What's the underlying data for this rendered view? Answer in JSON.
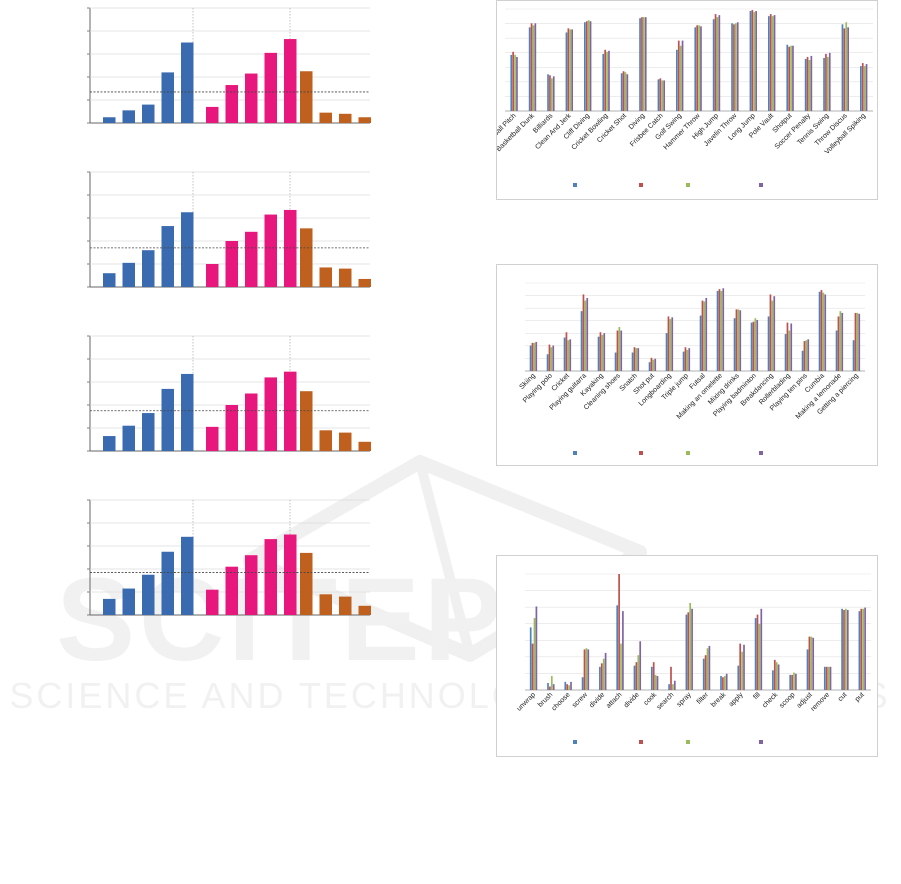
{
  "watermark": {
    "title": "SCITEPRESS",
    "subtitle": "SCIENCE AND TECHNOLOGY PUBLICATIONS"
  },
  "chart_data": [
    {
      "type": "bar",
      "grid": true,
      "ylim": [
        0,
        100
      ],
      "reference_line": 27,
      "groups": [
        {
          "color": "#3a6bb0",
          "values": [
            5,
            11,
            16,
            44,
            70
          ]
        },
        {
          "color": "#e8177d",
          "values": [
            14,
            33,
            43,
            61,
            73
          ]
        },
        {
          "color": "#c0601e",
          "values": [
            45,
            9,
            8,
            5
          ]
        }
      ]
    },
    {
      "type": "bar",
      "grid": true,
      "ylim": [
        0,
        100
      ],
      "reference_line": 34,
      "groups": [
        {
          "color": "#3a6bb0",
          "values": [
            12,
            21,
            32,
            53,
            65
          ]
        },
        {
          "color": "#e8177d",
          "values": [
            20,
            40,
            48,
            63,
            67
          ]
        },
        {
          "color": "#c0601e",
          "values": [
            51,
            17,
            16,
            7
          ]
        }
      ]
    },
    {
      "type": "bar",
      "grid": true,
      "ylim": [
        0,
        100
      ],
      "reference_line": 35,
      "groups": [
        {
          "color": "#3a6bb0",
          "values": [
            13,
            22,
            33,
            54,
            67
          ]
        },
        {
          "color": "#e8177d",
          "values": [
            21,
            40,
            50,
            64,
            69
          ]
        },
        {
          "color": "#c0601e",
          "values": [
            52,
            18,
            16,
            8
          ]
        }
      ]
    },
    {
      "type": "bar",
      "grid": true,
      "ylim": [
        0,
        100
      ],
      "reference_line": 37,
      "groups": [
        {
          "color": "#3a6bb0",
          "values": [
            14,
            23,
            35,
            55,
            68
          ]
        },
        {
          "color": "#e8177d",
          "values": [
            22,
            42,
            52,
            66,
            70
          ]
        },
        {
          "color": "#c0601e",
          "values": [
            54,
            18,
            16,
            8
          ]
        }
      ]
    },
    {
      "type": "bar",
      "grid": true,
      "ylim": [
        0,
        100
      ],
      "series_colors": [
        "#4f81bd",
        "#c0504d",
        "#9bbb59",
        "#8064a2"
      ],
      "categories": [
        "Baseball Pitch",
        "Basketball Dunk",
        "Billiards",
        "Clean And Jerk",
        "Cliff Diving",
        "Cricket Bowling",
        "Cricket Shot",
        "Diving",
        "Frisbee Catch",
        "Golf Swing",
        "Hammer Throw",
        "High Jump",
        "Javelin Throw",
        "Long Jump",
        "Pole Vault",
        "Shotput",
        "Soccer Penalty",
        "Tennis Swing",
        "Throw Discus",
        "Volleyball Spiking"
      ],
      "series": [
        {
          "values": [
            55,
            82,
            36,
            77,
            87,
            56,
            37,
            91,
            31,
            60,
            82,
            90,
            86,
            98,
            93,
            65,
            51,
            52,
            85,
            44
          ]
        },
        {
          "values": [
            58,
            86,
            35,
            81,
            88,
            60,
            39,
            92,
            32,
            69,
            84,
            95,
            85,
            99,
            95,
            63,
            53,
            56,
            81,
            47
          ]
        },
        {
          "values": [
            55,
            84,
            32,
            80,
            89,
            58,
            38,
            92,
            30,
            64,
            84,
            92,
            86,
            97,
            93,
            64,
            50,
            53,
            87,
            44
          ]
        },
        {
          "values": [
            53,
            86,
            34,
            80,
            88,
            59,
            36,
            92,
            30,
            69,
            83,
            94,
            87,
            98,
            94,
            64,
            54,
            57,
            82,
            46
          ]
        }
      ]
    },
    {
      "type": "bar",
      "grid": true,
      "ylim": [
        0,
        100
      ],
      "series_colors": [
        "#4f81bd",
        "#c0504d",
        "#9bbb59",
        "#8064a2"
      ],
      "categories": [
        "Skiing",
        "Playing polo",
        "Cricket",
        "Playing guitarra",
        "Kayaking",
        "Cleaning shoes",
        "Snatch",
        "Shot put",
        "Longboarding",
        "Triple jump",
        "Futsal",
        "Making an omelette",
        "Mixing drinks",
        "Playing badminton",
        "Breakdancing",
        "Rollerblading",
        "Playing ten pins",
        "Cumbia",
        "Making a lemonade",
        "Getting a piercing"
      ],
      "series": [
        {
          "values": [
            29,
            19,
            38,
            68,
            39,
            21,
            21,
            10,
            43,
            22,
            63,
            91,
            60,
            55,
            62,
            42,
            23,
            90,
            46,
            35
          ]
        },
        {
          "values": [
            32,
            30,
            44,
            87,
            44,
            46,
            27,
            15,
            62,
            27,
            80,
            93,
            70,
            56,
            87,
            55,
            34,
            92,
            62,
            66
          ]
        },
        {
          "values": [
            32,
            27,
            35,
            80,
            41,
            50,
            26,
            13,
            59,
            24,
            79,
            91,
            70,
            60,
            80,
            46,
            35,
            89,
            68,
            66
          ]
        },
        {
          "values": [
            33,
            29,
            36,
            83,
            43,
            46,
            26,
            14,
            61,
            26,
            83,
            94,
            69,
            58,
            85,
            54,
            36,
            87,
            66,
            65
          ]
        }
      ]
    },
    {
      "type": "bar",
      "grid": true,
      "ylim": [
        0,
        100
      ],
      "series_colors": [
        "#4f81bd",
        "#c0504d",
        "#9bbb59",
        "#8064a2"
      ],
      "categories": [
        "unwrap",
        "brush",
        "choose",
        "screw",
        "divide",
        "attach",
        "divide",
        "cook",
        "search",
        "spray",
        "filter",
        "break",
        "apply",
        "fill",
        "check",
        "scoop",
        "adjust",
        "remove",
        "cut",
        "put"
      ],
      "series": [
        {
          "values": [
            54,
            6,
            7,
            11,
            20,
            73,
            21,
            20,
            5,
            65,
            27,
            12,
            21,
            62,
            17,
            13,
            35,
            20,
            70,
            68
          ]
        },
        {
          "values": [
            40,
            3,
            5,
            35,
            23,
            100,
            24,
            24,
            20,
            67,
            30,
            11,
            40,
            65,
            26,
            13,
            46,
            20,
            69,
            70
          ]
        },
        {
          "values": [
            62,
            12,
            4,
            36,
            27,
            40,
            30,
            13,
            5,
            75,
            36,
            12,
            33,
            57,
            24,
            15,
            46,
            20,
            70,
            70
          ]
        },
        {
          "values": [
            72,
            5,
            7,
            35,
            32,
            68,
            42,
            12,
            8,
            70,
            38,
            14,
            39,
            70,
            22,
            14,
            45,
            20,
            69,
            71
          ]
        }
      ]
    }
  ]
}
